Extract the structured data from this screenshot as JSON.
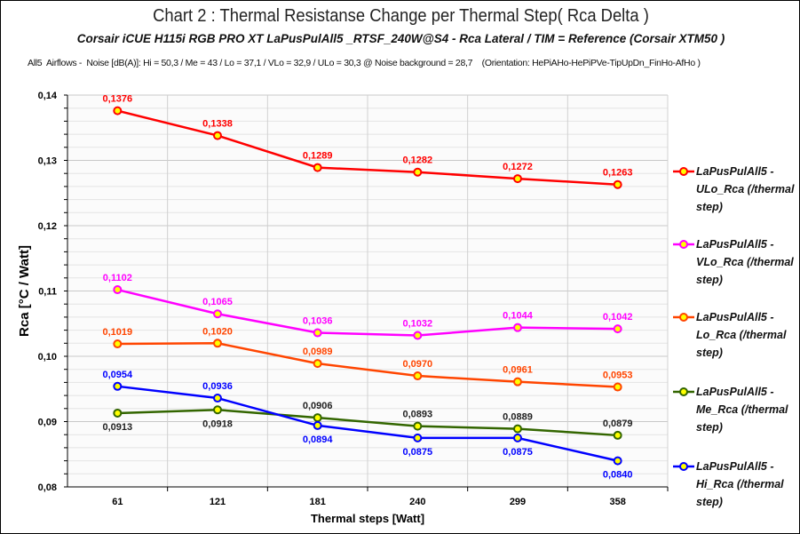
{
  "header": {
    "title": "Chart 2 :  Thermal Resistanse Change per Thermal Step( Rca  Delta )",
    "subtitle": "Corsair iCUE H115i RGB PRO XT  LaPusPulAll5 _RTSF_240W@S4  -  Rca Lateral    /   TIM =  Reference   (Corsair XTM50 )",
    "info": "All5  Airflows -  Noise [dB(A)]: Hi = 50,3 / Me = 43 / Lo = 37,1 / VLo = 32,9 / ULo = 30,3 @ Noise background = 28,7    (Orientation: HePiAHo-HePiPVe-TipUpDn_FinHo-AfHo )"
  },
  "chart_data": {
    "type": "line",
    "xlabel": "Thermal steps  [Watt]",
    "ylabel": "Rca  [°C / Watt]",
    "categories": [
      "61",
      "121",
      "181",
      "240",
      "299",
      "358"
    ],
    "ylim": [
      0.08,
      0.14
    ],
    "yticks": [
      "0,08",
      "0,09",
      "0,10",
      "0,11",
      "0,12",
      "0,13",
      "0,14"
    ],
    "grid": true,
    "legend_position": "right",
    "marker_fill": "#ffff00",
    "series": [
      {
        "name": "LaPusPulAll5 - ULo_Rca (/thermal step)",
        "color": "#ff0000",
        "values": [
          0.1376,
          0.1338,
          0.1289,
          0.1282,
          0.1272,
          0.1263
        ],
        "labels": [
          "0,1376",
          "0,1338",
          "0,1289",
          "0,1282",
          "0,1272",
          "0,1263"
        ],
        "label_pos": [
          "above",
          "above",
          "above",
          "above",
          "above",
          "above"
        ]
      },
      {
        "name": "LaPusPulAll5 - VLo_Rca (/thermal step)",
        "color": "#ff00ff",
        "values": [
          0.1102,
          0.1065,
          0.1036,
          0.1032,
          0.1044,
          0.1042
        ],
        "labels": [
          "0,1102",
          "0,1065",
          "0,1036",
          "0,1032",
          "0,1044",
          "0,1042"
        ],
        "label_pos": [
          "above",
          "above",
          "above",
          "above",
          "above",
          "above"
        ]
      },
      {
        "name": "LaPusPulAll5 - Lo_Rca (/thermal step)",
        "color": "#ff4500",
        "values": [
          0.1019,
          0.102,
          0.0989,
          0.097,
          0.0961,
          0.0953
        ],
        "labels": [
          "0,1019",
          "0,1020",
          "0,0989",
          "0,0970",
          "0,0961",
          "0,0953"
        ],
        "label_pos": [
          "above",
          "above",
          "above",
          "above",
          "above",
          "above"
        ]
      },
      {
        "name": "LaPusPulAll5 - Me_Rca (/thermal step)",
        "color": "#336600",
        "label_color": "#222222",
        "values": [
          0.0913,
          0.0918,
          0.0906,
          0.0893,
          0.0889,
          0.0879
        ],
        "labels": [
          "0,0913",
          "0,0918",
          "0,0906",
          "0,0893",
          "0,0889",
          "0,0879"
        ],
        "label_pos": [
          "below",
          "below",
          "above",
          "above",
          "above",
          "above"
        ]
      },
      {
        "name": "LaPusPulAll5 - Hi_Rca (/thermal step)",
        "color": "#0000ff",
        "values": [
          0.0954,
          0.0936,
          0.0894,
          0.0875,
          0.0875,
          0.084
        ],
        "labels": [
          "0,0954",
          "0,0936",
          "0,0894",
          "0,0875",
          "0,0875",
          "0,0840"
        ],
        "label_pos": [
          "above",
          "above",
          "below",
          "below",
          "below",
          "below"
        ]
      }
    ]
  }
}
